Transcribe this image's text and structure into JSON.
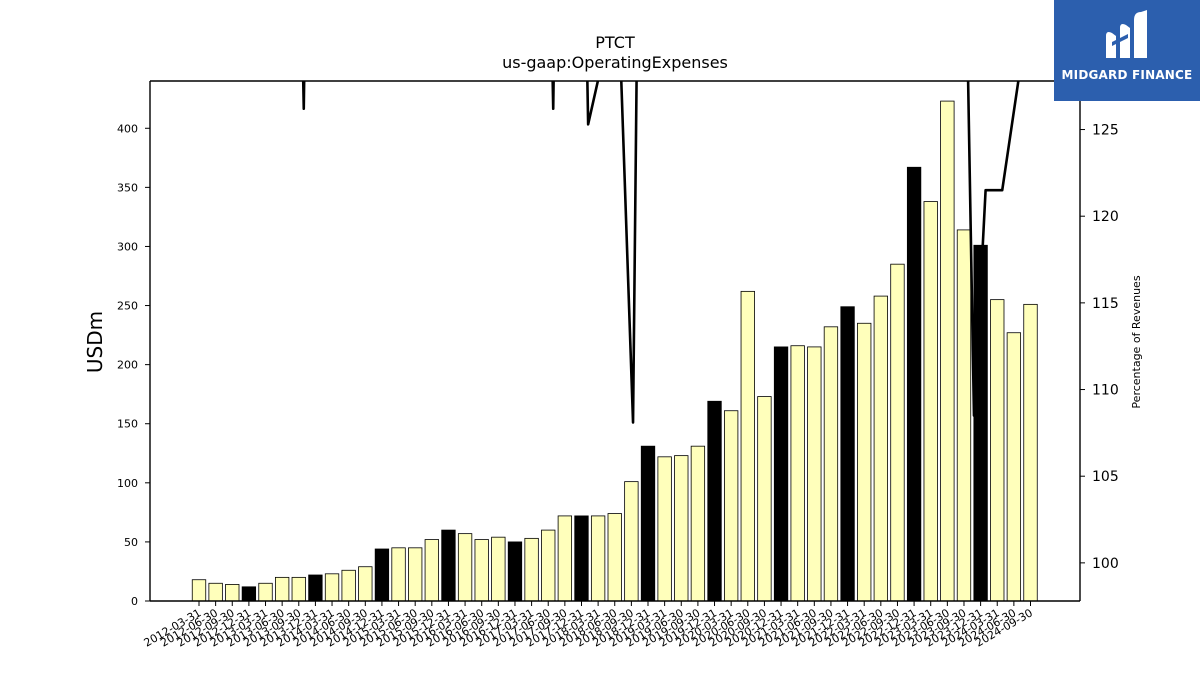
{
  "brand": {
    "name": "MIDGARD FINANCE",
    "bg_color": "#2c5fae"
  },
  "chart_data": {
    "type": "bar",
    "title": "PTCT",
    "subtitle": "us-gaap:OperatingExpenses",
    "ylabel": "USDm",
    "ylabel_right": "Percentage of Revenues",
    "ylim": [
      0,
      440
    ],
    "ylim_right": [
      97.8,
      127.8
    ],
    "yticks": [
      0,
      50,
      100,
      150,
      200,
      250,
      300,
      350,
      400
    ],
    "yticks_right": [
      100,
      105,
      110,
      115,
      120,
      125
    ],
    "bar_color": "#ffffbb",
    "highlight_color": "#000000",
    "categories": [
      "2012-03-31",
      "2012-06-30",
      "2012-09-30",
      "2012-12-31",
      "2013-03-31",
      "2013-06-30",
      "2013-09-30",
      "2013-12-31",
      "2014-03-31",
      "2014-06-30",
      "2014-09-30",
      "2014-12-31",
      "2015-03-31",
      "2015-06-30",
      "2015-09-30",
      "2015-12-31",
      "2016-03-31",
      "2016-06-30",
      "2016-09-30",
      "2016-12-31",
      "2017-03-31",
      "2017-06-30",
      "2017-09-30",
      "2017-12-31",
      "2018-03-31",
      "2018-06-30",
      "2018-09-30",
      "2018-12-31",
      "2019-03-31",
      "2019-06-30",
      "2019-09-30",
      "2019-12-31",
      "2020-03-31",
      "2020-06-30",
      "2020-09-30",
      "2020-12-31",
      "2021-03-31",
      "2021-06-30",
      "2021-09-30",
      "2021-12-31",
      "2022-03-31",
      "2022-06-30",
      "2022-09-30",
      "2022-12-31",
      "2023-03-31",
      "2023-06-30",
      "2023-09-30",
      "2023-12-31",
      "2024-03-31",
      "2024-06-30",
      "2024-09-30"
    ],
    "values": [
      18,
      15,
      14,
      12,
      15,
      20,
      20,
      22,
      23,
      26,
      29,
      44,
      45,
      45,
      52,
      60,
      57,
      52,
      54,
      50,
      53,
      60,
      72,
      72,
      72,
      74,
      101,
      131,
      122,
      123,
      131,
      169,
      161,
      262,
      173,
      215,
      216,
      215,
      232,
      249,
      235,
      258,
      285,
      367,
      338,
      423,
      314,
      301,
      255,
      227,
      251
    ],
    "highlight": [
      false,
      false,
      false,
      true,
      false,
      false,
      false,
      true,
      false,
      false,
      false,
      true,
      false,
      false,
      false,
      true,
      false,
      false,
      false,
      true,
      false,
      false,
      false,
      true,
      false,
      false,
      false,
      true,
      false,
      false,
      false,
      true,
      false,
      false,
      false,
      true,
      false,
      false,
      false,
      true,
      false,
      false,
      false,
      true,
      false,
      false,
      false,
      true,
      false,
      false,
      false
    ],
    "line_series": {
      "name": "Percentage of Revenues",
      "points": [
        {
          "x": 6.1,
          "y": 136
        },
        {
          "x": 6.3,
          "y": 126.2
        },
        {
          "x": 6.5,
          "y": 140
        },
        {
          "x": 21.1,
          "y": 136
        },
        {
          "x": 21.3,
          "y": 126.2
        },
        {
          "x": 21.5,
          "y": 140
        },
        {
          "x": 23.2,
          "y": 136
        },
        {
          "x": 23.4,
          "y": 125.3
        },
        {
          "x": 24.5,
          "y": 130
        },
        {
          "x": 25.1,
          "y": 136
        },
        {
          "x": 26.1,
          "y": 108.1
        },
        {
          "x": 26.4,
          "y": 136
        },
        {
          "x": 46.1,
          "y": 136
        },
        {
          "x": 46.6,
          "y": 108.5
        },
        {
          "x": 47.3,
          "y": 121.5
        },
        {
          "x": 48.3,
          "y": 121.5
        },
        {
          "x": 49.3,
          "y": 128
        }
      ]
    }
  }
}
